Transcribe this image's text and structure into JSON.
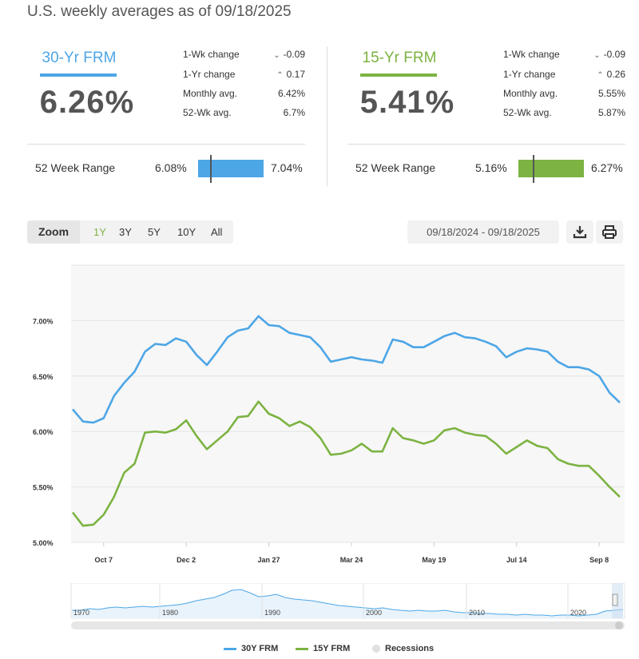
{
  "subtitle": "U.S. weekly averages as of 09/18/2025",
  "products": [
    {
      "name": "30-Yr FRM",
      "color": "#4da6e6",
      "rate": "6.26%",
      "stats": [
        {
          "label": "1-Wk change",
          "value": "-0.09",
          "arrow": "down"
        },
        {
          "label": "1-Yr change",
          "value": "0.17",
          "arrow": "up"
        },
        {
          "label": "Monthly avg.",
          "value": "6.42%"
        },
        {
          "label": "52-Wk avg.",
          "value": "6.7%"
        }
      ],
      "range_label": "52 Week Range",
      "range_min": "6.08%",
      "range_max": "7.04%",
      "range_current_fraction": 0.19
    },
    {
      "name": "15-Yr FRM",
      "color": "#7cb342",
      "rate": "5.41%",
      "stats": [
        {
          "label": "1-Wk change",
          "value": "-0.09",
          "arrow": "down"
        },
        {
          "label": "1-Yr change",
          "value": "0.26",
          "arrow": "up"
        },
        {
          "label": "Monthly avg.",
          "value": "5.55%"
        },
        {
          "label": "52-Wk avg.",
          "value": "5.87%"
        }
      ],
      "range_label": "52 Week Range",
      "range_min": "5.16%",
      "range_max": "6.27%",
      "range_current_fraction": 0.23
    }
  ],
  "toolbar": {
    "zoom_label": "Zoom",
    "zoom_options": [
      "1Y",
      "3Y",
      "5Y",
      "10Y",
      "All"
    ],
    "zoom_selected": "1Y",
    "date_range": "09/18/2024 - 09/18/2025",
    "download_icon": "download-icon",
    "print_icon": "print-icon"
  },
  "chart_data": {
    "type": "line",
    "ylim": [
      5.0,
      7.5
    ],
    "yticks": [
      5.0,
      5.5,
      6.0,
      6.5,
      7.0
    ],
    "ytick_labels": [
      "5.00%",
      "5.50%",
      "6.00%",
      "6.50%",
      "7.00%"
    ],
    "xtick_labels": [
      "Oct 7",
      "Dec 2",
      "Jan 27",
      "Mar 24",
      "May 19",
      "Jul 14",
      "Sep 8"
    ],
    "grid": true,
    "legend_position": "bottom-center",
    "series": [
      {
        "name": "30Y FRM",
        "color": "#4da6e6",
        "values": [
          6.2,
          6.09,
          6.08,
          6.12,
          6.32,
          6.44,
          6.54,
          6.72,
          6.79,
          6.78,
          6.84,
          6.81,
          6.69,
          6.6,
          6.72,
          6.85,
          6.91,
          6.93,
          7.04,
          6.96,
          6.95,
          6.89,
          6.87,
          6.85,
          6.76,
          6.63,
          6.65,
          6.67,
          6.65,
          6.64,
          6.62,
          6.83,
          6.81,
          6.76,
          6.76,
          6.81,
          6.86,
          6.89,
          6.85,
          6.84,
          6.81,
          6.77,
          6.67,
          6.72,
          6.75,
          6.74,
          6.72,
          6.63,
          6.58,
          6.58,
          6.56,
          6.5,
          6.35,
          6.26
        ]
      },
      {
        "name": "15Y FRM",
        "color": "#7cb342",
        "values": [
          5.27,
          5.15,
          5.16,
          5.25,
          5.41,
          5.63,
          5.71,
          5.99,
          6.0,
          5.99,
          6.02,
          6.1,
          5.96,
          5.84,
          5.92,
          6.0,
          6.13,
          6.14,
          6.27,
          6.16,
          6.12,
          6.05,
          6.09,
          6.04,
          5.94,
          5.79,
          5.8,
          5.83,
          5.89,
          5.82,
          5.82,
          6.03,
          5.94,
          5.92,
          5.89,
          5.92,
          6.01,
          6.03,
          5.99,
          5.97,
          5.96,
          5.89,
          5.8,
          5.86,
          5.92,
          5.87,
          5.85,
          5.75,
          5.71,
          5.69,
          5.69,
          5.6,
          5.5,
          5.41
        ]
      }
    ],
    "recessions_label": "Recessions"
  },
  "navigator": {
    "labels": [
      "1970",
      "1980",
      "1990",
      "2000",
      "2010",
      "2020"
    ]
  }
}
